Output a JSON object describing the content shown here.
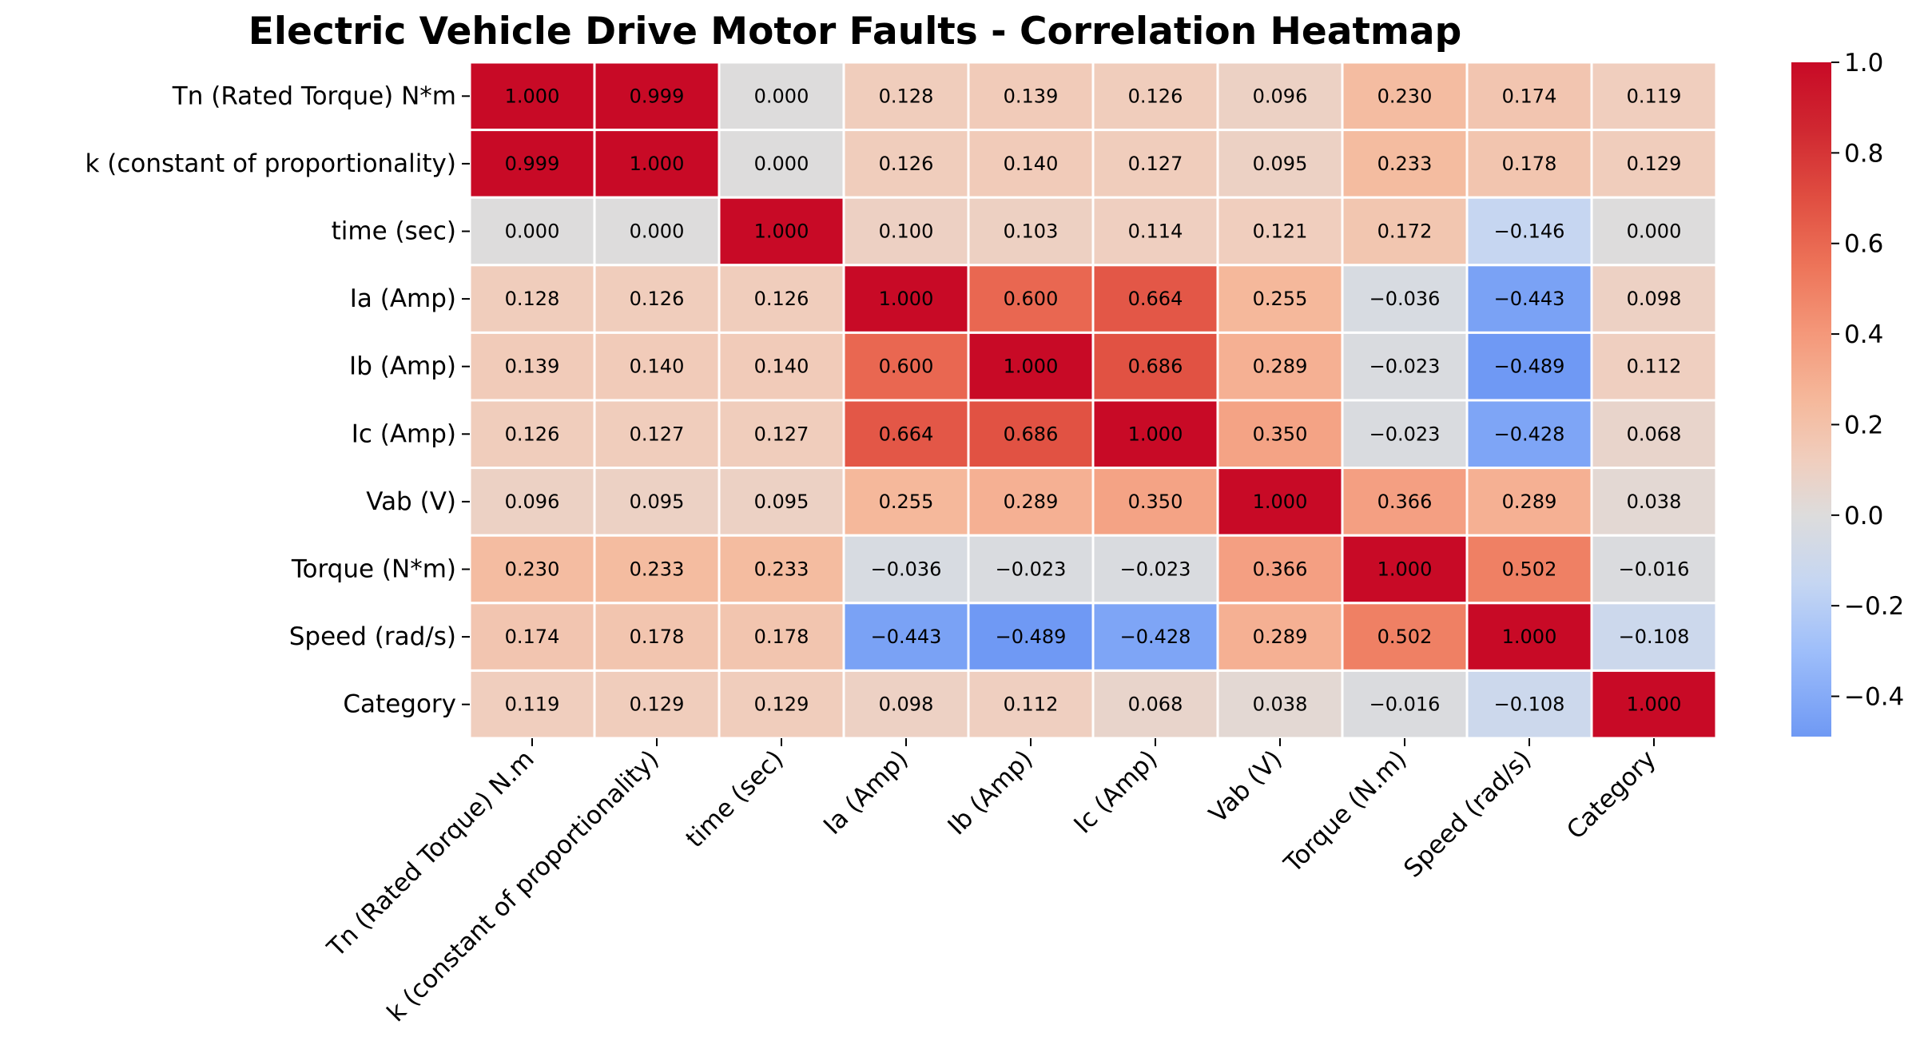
{
  "chart_data": {
    "type": "heatmap",
    "title": "Electric Vehicle Drive Motor Faults - Correlation Heatmap",
    "row_labels": [
      "Tn (Rated Torque) N*m",
      "k (constant of proportionality)",
      "time (sec)",
      "Ia (Amp)",
      "Ib (Amp)",
      "Ic (Amp)",
      "Vab (V)",
      "Torque (N*m)",
      "Speed (rad/s)",
      "Category"
    ],
    "col_labels": [
      "Tn (Rated Torque) N.m",
      "k (constant of proportionality)",
      "time (sec)",
      "Ia (Amp)",
      "Ib (Amp)",
      "Ic (Amp)",
      "Vab (V)",
      "Torque (N.m)",
      "Speed (rad/s)",
      "Category"
    ],
    "values": [
      [
        1.0,
        0.999,
        0.0,
        0.128,
        0.139,
        0.126,
        0.096,
        0.23,
        0.174,
        0.119
      ],
      [
        0.999,
        1.0,
        0.0,
        0.126,
        0.14,
        0.127,
        0.095,
        0.233,
        0.178,
        0.129
      ],
      [
        0.0,
        0.0,
        1.0,
        0.1,
        0.103,
        0.114,
        0.121,
        0.172,
        -0.146,
        0.0
      ],
      [
        0.128,
        0.126,
        0.126,
        1.0,
        0.6,
        0.664,
        0.255,
        -0.036,
        -0.443,
        0.098
      ],
      [
        0.139,
        0.14,
        0.14,
        0.6,
        1.0,
        0.686,
        0.289,
        -0.023,
        -0.489,
        0.112
      ],
      [
        0.126,
        0.127,
        0.127,
        0.664,
        0.686,
        1.0,
        0.35,
        -0.023,
        -0.428,
        0.068
      ],
      [
        0.096,
        0.095,
        0.095,
        0.255,
        0.289,
        0.35,
        1.0,
        0.366,
        0.289,
        0.038
      ],
      [
        0.23,
        0.233,
        0.233,
        -0.036,
        -0.023,
        -0.023,
        0.366,
        1.0,
        0.502,
        -0.016
      ],
      [
        0.174,
        0.178,
        0.178,
        -0.443,
        -0.489,
        -0.428,
        0.289,
        0.502,
        1.0,
        -0.108
      ],
      [
        0.119,
        0.129,
        0.129,
        0.098,
        0.112,
        0.068,
        0.038,
        -0.016,
        -0.108,
        1.0
      ]
    ],
    "cell_labels": [
      [
        "1.000",
        "0.999",
        "0.000",
        "0.128",
        "0.139",
        "0.126",
        "0.096",
        "0.230",
        "0.174",
        "0.119"
      ],
      [
        "0.999",
        "1.000",
        "0.000",
        "0.126",
        "0.140",
        "0.127",
        "0.095",
        "0.233",
        "0.178",
        "0.129"
      ],
      [
        "0.000",
        "0.000",
        "1.000",
        "0.100",
        "0.103",
        "0.114",
        "0.121",
        "0.172",
        "−0.146",
        "0.000"
      ],
      [
        "0.128",
        "0.126",
        "0.126",
        "1.000",
        "0.600",
        "0.664",
        "0.255",
        "−0.036",
        "−0.443",
        "0.098"
      ],
      [
        "0.139",
        "0.140",
        "0.140",
        "0.600",
        "1.000",
        "0.686",
        "0.289",
        "−0.023",
        "−0.489",
        "0.112"
      ],
      [
        "0.126",
        "0.127",
        "0.127",
        "0.664",
        "0.686",
        "1.000",
        "0.350",
        "−0.023",
        "−0.428",
        "0.068"
      ],
      [
        "0.096",
        "0.095",
        "0.095",
        "0.255",
        "0.289",
        "0.350",
        "1.000",
        "0.366",
        "0.289",
        "0.038"
      ],
      [
        "0.230",
        "0.233",
        "0.233",
        "−0.036",
        "−0.023",
        "−0.023",
        "0.366",
        "1.000",
        "0.502",
        "−0.016"
      ],
      [
        "0.174",
        "0.178",
        "0.178",
        "−0.443",
        "−0.489",
        "−0.428",
        "0.289",
        "0.502",
        "1.000",
        "−0.108"
      ],
      [
        "0.119",
        "0.129",
        "0.129",
        "0.098",
        "0.112",
        "0.068",
        "0.038",
        "−0.016",
        "−0.108",
        "1.000"
      ]
    ],
    "colorbar": {
      "vmin": -0.489,
      "vmax": 1.0,
      "ticks": [
        1.0,
        0.8,
        0.6,
        0.4,
        0.2,
        0.0,
        -0.2,
        -0.4
      ],
      "tick_labels": [
        "1.0",
        "0.8",
        "0.6",
        "0.4",
        "0.2",
        "0.0",
        "−0.2",
        "−0.4"
      ]
    },
    "colormap": "coolwarm",
    "colors": {
      "cold": "#6f99f4",
      "neutral": "#dddcdc",
      "hot": "#c80a26",
      "grid": "#ffffff",
      "text": "#000000"
    }
  }
}
